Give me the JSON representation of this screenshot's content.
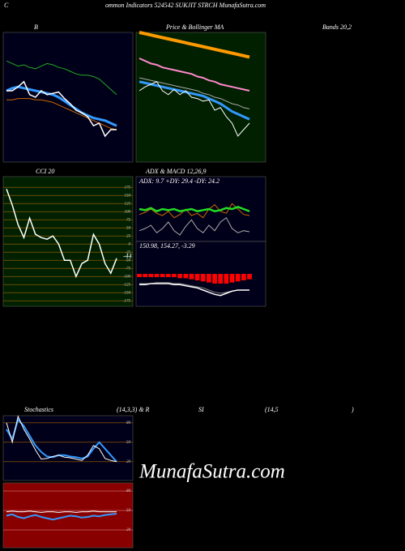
{
  "header": {
    "c": "C",
    "rest": "ommon  Indicators 524542  SUKJIT STRCH MunafaSutra.com"
  },
  "labels": {
    "b": "B",
    "price": "Price & Bollinger MA",
    "bands": "Bands 20,2",
    "cci": "CCI 20",
    "adx": "ADX  & MACD 12,26,9",
    "stoch": "Stochastics",
    "stoch_params": "(14,3,3) & R",
    "si": "SI",
    "rsi_params": "(14,5",
    "close": ")"
  },
  "watermark": "MunafaSutra.com",
  "panels": [
    {
      "id": "bands",
      "bg": "#00001a",
      "ylim": [
        0,
        100
      ],
      "series": [
        {
          "color": "#22aa22",
          "width": 1,
          "values": [
            78,
            76,
            74,
            75,
            73,
            72,
            74,
            76,
            75,
            73,
            72,
            70,
            68,
            67,
            67,
            66,
            64,
            60,
            56,
            52
          ]
        },
        {
          "color": "#cc6600",
          "width": 1,
          "values": [
            48,
            48,
            49,
            49,
            49,
            48,
            48,
            47,
            46,
            44,
            42,
            40,
            38,
            36,
            34,
            32,
            30,
            28,
            26,
            25
          ]
        },
        {
          "color": "#3399ff",
          "width": 3,
          "values": [
            55,
            57,
            58,
            57,
            56,
            55,
            54,
            53,
            52,
            50,
            47,
            44,
            41,
            38,
            36,
            34,
            33,
            32,
            30,
            28
          ]
        },
        {
          "color": "#ffffff",
          "width": 1.5,
          "values": [
            55,
            55,
            58,
            62,
            52,
            50,
            55,
            52,
            53,
            54,
            49,
            45,
            40,
            38,
            35,
            28,
            30,
            20,
            25,
            25
          ]
        }
      ]
    },
    {
      "id": "price",
      "bg": "#002000",
      "ylim": [
        0,
        100
      ],
      "series": [
        {
          "color": "#ff9900",
          "width": 4,
          "values": [
            100,
            99,
            98,
            97,
            96,
            95,
            94,
            93,
            92,
            91,
            90,
            89,
            88,
            87,
            86,
            85,
            84,
            83,
            82,
            81
          ]
        },
        {
          "color": "#ff88cc",
          "width": 2,
          "values": [
            80,
            78,
            76,
            75,
            73,
            72,
            71,
            70,
            69,
            68,
            66,
            65,
            63,
            62,
            60,
            59,
            58,
            57,
            56,
            55
          ]
        },
        {
          "color": "#aaaaaa",
          "width": 1,
          "values": [
            65,
            64,
            63,
            62,
            61,
            60,
            59,
            58,
            57,
            56,
            55,
            53,
            52,
            50,
            49,
            47,
            45,
            44,
            42,
            41
          ]
        },
        {
          "color": "#3399ff",
          "width": 3,
          "values": [
            62,
            61,
            60,
            59,
            58,
            57,
            56,
            55,
            54,
            53,
            52,
            51,
            49,
            47,
            45,
            42,
            39,
            37,
            35,
            33
          ]
        },
        {
          "color": "#ffffff",
          "width": 1,
          "values": [
            55,
            58,
            60,
            62,
            55,
            52,
            56,
            52,
            55,
            50,
            49,
            47,
            48,
            40,
            42,
            35,
            30,
            20,
            25,
            30
          ]
        }
      ]
    },
    {
      "id": "cci",
      "bg": "#002000",
      "ylim": [
        -192,
        208
      ],
      "yticks": [
        175,
        150,
        125,
        100,
        75,
        50,
        25,
        0,
        -25,
        -50,
        -75,
        -100,
        -125,
        -150,
        -175
      ],
      "gridcolor": "#aa6600",
      "last_label": "-44",
      "series": [
        {
          "color": "#ffffff",
          "width": 1.5,
          "values": [
            170,
            120,
            60,
            20,
            80,
            30,
            20,
            15,
            25,
            0,
            -50,
            -50,
            -100,
            -60,
            -50,
            30,
            0,
            -60,
            -90,
            -44
          ]
        }
      ]
    },
    {
      "id": "adx",
      "bg": "#00001a",
      "ylim": [
        0,
        60
      ],
      "text": "ADX: 9.7  +DY: 29.4  -DY: 24.2",
      "series": [
        {
          "color": "#cc6600",
          "width": 1,
          "values": [
            25,
            27,
            30,
            26,
            24,
            28,
            22,
            25,
            30,
            24,
            26,
            22,
            30,
            34,
            28,
            26,
            35,
            30,
            25,
            24
          ]
        },
        {
          "color": "#aaaaaa",
          "width": 1,
          "values": [
            10,
            12,
            15,
            8,
            12,
            18,
            10,
            6,
            14,
            20,
            12,
            8,
            15,
            10,
            18,
            22,
            12,
            8,
            10,
            9
          ]
        },
        {
          "color": "#22dd22",
          "width": 2.5,
          "values": [
            30,
            29,
            31,
            28,
            30,
            29,
            30,
            28,
            29,
            30,
            28,
            29,
            30,
            28,
            29,
            31,
            30,
            32,
            30,
            28
          ]
        }
      ]
    },
    {
      "id": "macd",
      "bg": "#00001a",
      "ylim": [
        -30,
        30
      ],
      "text": "150.98,  154.27,  -3.29",
      "bars": {
        "color": "#ff0000",
        "values": [
          -3,
          -3,
          -3,
          -3,
          -3,
          -3,
          -3,
          -4,
          -4,
          -5,
          -6,
          -7,
          -8,
          -9,
          -9,
          -9,
          -8,
          -7,
          -6,
          -5
        ]
      },
      "series": [
        {
          "color": "#888888",
          "width": 1,
          "values": [
            -9,
            -9,
            -9,
            -8,
            -8,
            -8,
            -9,
            -9,
            -10,
            -11,
            -12,
            -13,
            -15,
            -17,
            -18,
            -17,
            -16,
            -15,
            -15,
            -15
          ]
        },
        {
          "color": "#ffffff",
          "width": 1.5,
          "values": [
            -10,
            -10,
            -9,
            -9,
            -9,
            -9,
            -10,
            -10,
            -11,
            -12,
            -13,
            -15,
            -17,
            -19,
            -20,
            -18,
            -16,
            -15,
            -15,
            -15
          ]
        }
      ]
    },
    {
      "id": "stoch",
      "bg": "#00001a",
      "ylim": [
        -9,
        91
      ],
      "yticks": [
        80,
        50,
        20
      ],
      "gridcolor": "#aa6600",
      "series": [
        {
          "color": "#3399ff",
          "width": 2,
          "values": [
            70,
            55,
            85,
            75,
            60,
            45,
            35,
            28,
            27,
            30,
            30,
            28,
            27,
            25,
            28,
            40,
            50,
            40,
            30,
            20
          ]
        },
        {
          "color": "#ffffff",
          "width": 1,
          "values": [
            80,
            50,
            90,
            70,
            55,
            38,
            24,
            25,
            28,
            30,
            27,
            26,
            24,
            22,
            30,
            45,
            40,
            25,
            22,
            20
          ]
        }
      ]
    },
    {
      "id": "rsi",
      "bg": "#880000",
      "ylim": [
        -7.5,
        92.5
      ],
      "yticks": [
        80,
        50,
        20
      ],
      "gridcolor": "#cc6666",
      "series": [
        {
          "color": "#ffffff",
          "width": 1,
          "values": [
            48,
            49,
            48,
            48,
            49,
            48,
            47,
            48,
            48,
            47,
            48,
            48,
            47,
            48,
            48,
            49,
            48,
            48,
            48,
            48
          ]
        },
        {
          "color": "#3399ff",
          "width": 2,
          "values": [
            42,
            44,
            40,
            38,
            41,
            43,
            40,
            38,
            36,
            38,
            40,
            42,
            41,
            39,
            40,
            42,
            41,
            43,
            44,
            45
          ]
        }
      ]
    }
  ]
}
